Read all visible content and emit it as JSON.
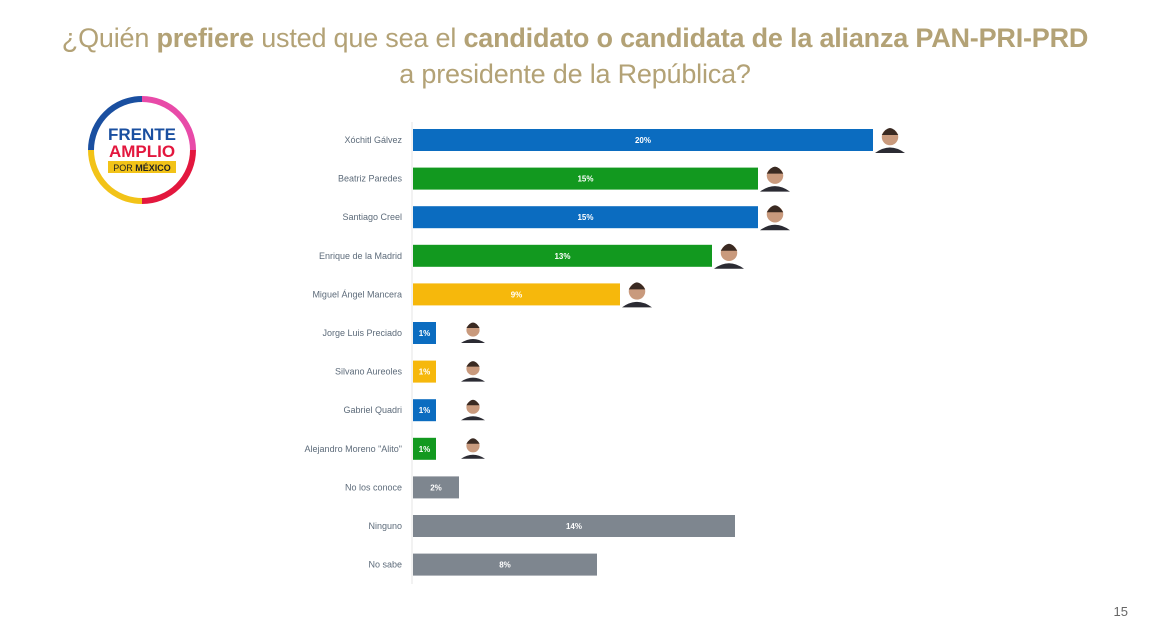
{
  "title": {
    "parts": [
      {
        "text": "¿Quién ",
        "bold": false
      },
      {
        "text": "prefiere",
        "bold": true
      },
      {
        "text": " usted que sea el ",
        "bold": false
      },
      {
        "text": "candidato o candidata de la alianza PAN-PRI-PRD",
        "bold": true
      },
      {
        "text": " a presidente  de la República?",
        "bold": false
      }
    ]
  },
  "logo": {
    "line1": "FRENTE",
    "line2": "AMPLIO",
    "line3_a": "POR ",
    "line3_b": "MÉXICO"
  },
  "page_number": "15",
  "colors": {
    "blue": "#0b6cc0",
    "green": "#12991f",
    "yellow": "#f6b80c",
    "gray": "#7e868f",
    "title": "#b3a276"
  },
  "chart_data": {
    "type": "bar",
    "orientation": "horizontal",
    "xlim": [
      0,
      20
    ],
    "grid": false,
    "categories": [
      "Xóchitl Gálvez",
      "Beatriz Paredes",
      "Santiago Creel",
      "Enrique de la Madrid",
      "Miguel Ángel Mancera",
      "Jorge Luis Preciado",
      "Silvano Aureoles",
      "Gabriel Quadri",
      "Alejandro Moreno \"Alito\"",
      "No los conoce",
      "Ninguno",
      "No sabe"
    ],
    "values": [
      20,
      15,
      15,
      13,
      9,
      1,
      1,
      1,
      1,
      2,
      14,
      8
    ],
    "data_labels": [
      "20%",
      "15%",
      "15%",
      "13%",
      "9%",
      "1%",
      "1%",
      "1%",
      "1%",
      "2%",
      "14%",
      "8%"
    ],
    "bar_colors": [
      "blue",
      "green",
      "blue",
      "green",
      "yellow",
      "blue",
      "yellow",
      "blue",
      "green",
      "gray",
      "gray",
      "gray"
    ],
    "has_photo": [
      true,
      true,
      true,
      true,
      true,
      true,
      true,
      true,
      true,
      false,
      false,
      false
    ]
  }
}
